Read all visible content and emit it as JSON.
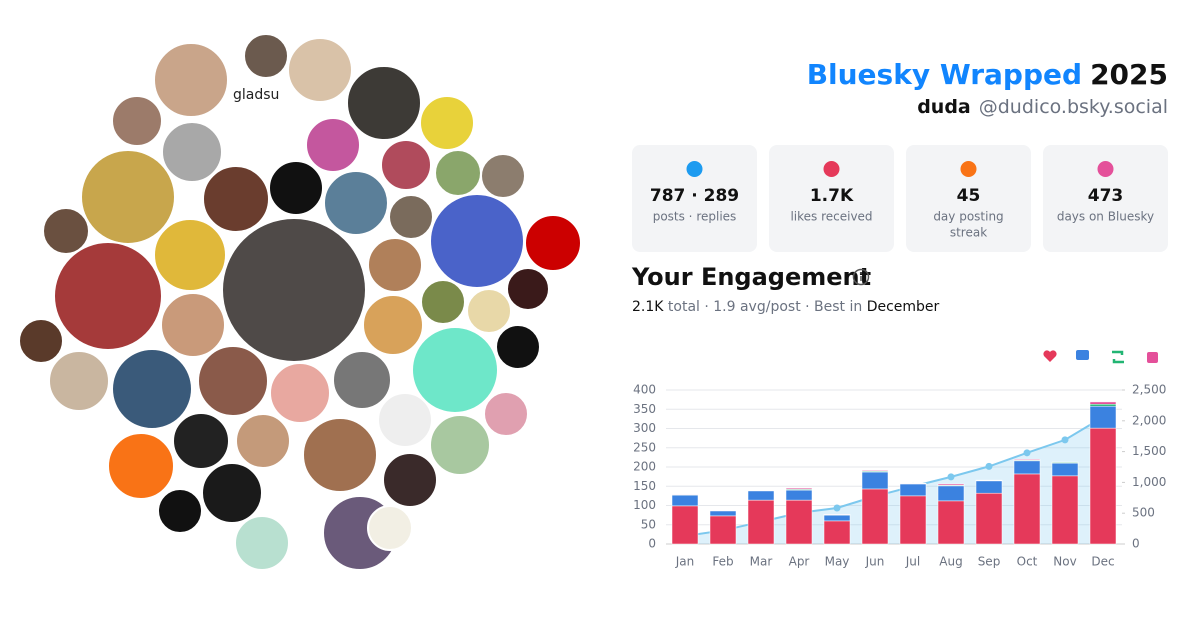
{
  "header": {
    "title_app": "Bluesky Wrapped",
    "title_year": "2025",
    "name": "duda",
    "handle": "@dudico.bsky.social"
  },
  "collage": {
    "label": "gladsu"
  },
  "stats": [
    {
      "value": "787 · 289",
      "label": [
        "posts · replies"
      ]
    },
    {
      "value": "1.7K",
      "label": [
        "likes received"
      ]
    },
    {
      "value": "45",
      "label": [
        "day posting",
        "streak"
      ]
    },
    {
      "value": "473",
      "label": [
        "days on Bluesky"
      ]
    }
  ],
  "engagement": {
    "title": "Your Engagement",
    "summary": [
      "2.1K",
      " total · 1.9 avg/post · Best in ",
      "December"
    ]
  },
  "chart_data": {
    "type": "bar",
    "categories": [
      "Jan",
      "Feb",
      "Mar",
      "Apr",
      "May",
      "Jun",
      "Jul",
      "Aug",
      "Sep",
      "Oct",
      "Nov",
      "Dec"
    ],
    "series": [
      {
        "color": "#e5395a",
        "values": [
          99,
          73,
          114,
          114,
          60,
          143,
          125,
          112,
          132,
          182,
          177,
          301
        ]
      },
      {
        "color": "#3b82e0",
        "values": [
          28,
          13,
          24,
          26,
          15,
          44,
          31,
          39,
          32,
          34,
          33,
          57
        ]
      },
      {
        "color": "#22b573",
        "values": [
          1,
          1,
          1,
          2,
          1,
          2,
          1,
          2,
          1,
          2,
          2,
          5
        ]
      },
      {
        "color": "#e4509a",
        "values": [
          1,
          1,
          1,
          3,
          1,
          2,
          1,
          3,
          1,
          2,
          1,
          6
        ]
      },
      {
        "type": "line",
        "axis": "y2",
        "color": "#7cc8ee",
        "values": [
          130,
          220,
          360,
          505,
          585,
          775,
          935,
          1090,
          1260,
          1480,
          1690,
          2060
        ]
      }
    ],
    "ylim": [
      0,
      400
    ],
    "yticks": [
      0,
      50,
      100,
      150,
      200,
      250,
      300,
      350,
      400
    ],
    "y2lim": [
      0,
      2500
    ],
    "y2ticks": [
      0,
      500,
      {
        "value": 1000,
        "label": "1,000"
      },
      {
        "value": 1500,
        "label": "1,500"
      },
      {
        "value": 2000,
        "label": "2,000"
      },
      {
        "value": 2500,
        "label": "2,500"
      }
    ],
    "grid": true
  }
}
